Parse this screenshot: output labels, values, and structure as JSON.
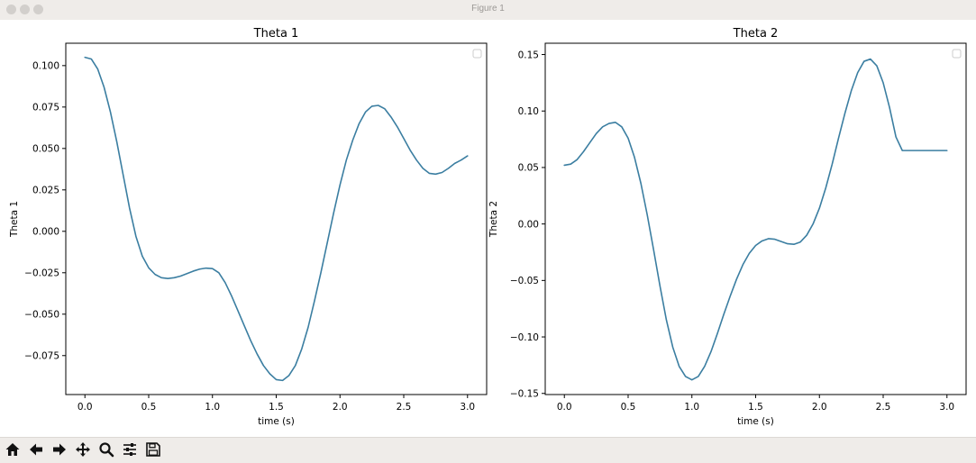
{
  "window": {
    "title": "Figure 1"
  },
  "toolbar": {
    "tools": [
      {
        "name": "home-icon"
      },
      {
        "name": "back-arrow-icon"
      },
      {
        "name": "forward-arrow-icon"
      },
      {
        "name": "pan-move-icon"
      },
      {
        "name": "zoom-magnifier-icon"
      },
      {
        "name": "configure-subplots-icon"
      },
      {
        "name": "save-floppy-icon"
      }
    ]
  },
  "colors": {
    "line": "#3b7ea1",
    "frame": "#000000"
  },
  "chart_data": [
    {
      "type": "line",
      "title": "Theta 1",
      "xlabel": "time (s)",
      "ylabel": "Theta 1",
      "xlim": [
        -0.15,
        3.15
      ],
      "ylim": [
        -0.0985,
        0.1135
      ],
      "xticks": [
        0.0,
        0.5,
        1.0,
        1.5,
        2.0,
        2.5,
        3.0
      ],
      "xtick_labels": [
        "0.0",
        "0.5",
        "1.0",
        "1.5",
        "2.0",
        "2.5",
        "3.0"
      ],
      "yticks": [
        -0.075,
        -0.05,
        -0.025,
        0.0,
        0.025,
        0.05,
        0.075,
        0.1
      ],
      "ytick_labels": [
        "−0.075",
        "−0.050",
        "−0.025",
        "0.000",
        "0.025",
        "0.050",
        "0.075",
        "0.100"
      ],
      "legend": "upper right (empty)",
      "grid": false,
      "series": [
        {
          "x": [
            0.0,
            0.05,
            0.1,
            0.15,
            0.2,
            0.25,
            0.3,
            0.35,
            0.4,
            0.45,
            0.5,
            0.55,
            0.6,
            0.65,
            0.7,
            0.75,
            0.8,
            0.85,
            0.9,
            0.95,
            1.0,
            1.05,
            1.1,
            1.15,
            1.2,
            1.25,
            1.3,
            1.35,
            1.4,
            1.45,
            1.5,
            1.55,
            1.6,
            1.65,
            1.7,
            1.75,
            1.8,
            1.85,
            1.9,
            1.95,
            2.0,
            2.05,
            2.1,
            2.15,
            2.2,
            2.25,
            2.3,
            2.35,
            2.4,
            2.45,
            2.5,
            2.55,
            2.6,
            2.65,
            2.7,
            2.75,
            2.8,
            2.85,
            2.9,
            2.95,
            3.0
          ],
          "values": [
            0.105,
            0.104,
            0.098,
            0.087,
            0.072,
            0.054,
            0.034,
            0.014,
            -0.003,
            -0.015,
            -0.022,
            -0.026,
            -0.028,
            -0.0285,
            -0.028,
            -0.027,
            -0.0255,
            -0.024,
            -0.0228,
            -0.0222,
            -0.0225,
            -0.025,
            -0.031,
            -0.039,
            -0.048,
            -0.057,
            -0.066,
            -0.074,
            -0.081,
            -0.086,
            -0.0895,
            -0.09,
            -0.087,
            -0.081,
            -0.071,
            -0.058,
            -0.042,
            -0.025,
            -0.007,
            0.011,
            0.028,
            0.043,
            0.055,
            0.065,
            0.072,
            0.0755,
            0.076,
            0.074,
            0.069,
            0.063,
            0.056,
            0.049,
            0.043,
            0.038,
            0.035,
            0.0345,
            0.0355,
            0.038,
            0.041,
            0.043,
            0.0455
          ]
        }
      ]
    },
    {
      "type": "line",
      "title": "Theta 2",
      "xlabel": "time (s)",
      "ylabel": "Theta 2",
      "xlim": [
        -0.15,
        3.15
      ],
      "ylim": [
        -0.151,
        0.16
      ],
      "xticks": [
        0.0,
        0.5,
        1.0,
        1.5,
        2.0,
        2.5,
        3.0
      ],
      "xtick_labels": [
        "0.0",
        "0.5",
        "1.0",
        "1.5",
        "2.0",
        "2.5",
        "3.0"
      ],
      "yticks": [
        -0.15,
        -0.1,
        -0.05,
        0.0,
        0.05,
        0.1,
        0.15
      ],
      "ytick_labels": [
        "−0.15",
        "−0.10",
        "−0.05",
        "0.00",
        "0.05",
        "0.10",
        "0.15"
      ],
      "legend": "upper right (empty)",
      "grid": false,
      "series": [
        {
          "x": [
            0.0,
            0.05,
            0.1,
            0.15,
            0.2,
            0.25,
            0.3,
            0.35,
            0.4,
            0.45,
            0.5,
            0.55,
            0.6,
            0.65,
            0.7,
            0.75,
            0.8,
            0.85,
            0.9,
            0.95,
            1.0,
            1.05,
            1.1,
            1.15,
            1.2,
            1.25,
            1.3,
            1.35,
            1.4,
            1.45,
            1.5,
            1.55,
            1.6,
            1.65,
            1.7,
            1.75,
            1.8,
            1.85,
            1.9,
            1.95,
            2.0,
            2.05,
            2.1,
            2.15,
            2.2,
            2.25,
            2.3,
            2.35,
            2.4,
            2.45,
            2.5,
            2.55,
            2.6,
            2.65,
            2.7,
            2.75,
            2.8,
            2.85,
            2.9,
            2.95,
            3.0
          ],
          "values": [
            0.052,
            0.053,
            0.057,
            0.064,
            0.072,
            0.08,
            0.086,
            0.089,
            0.09,
            0.086,
            0.076,
            0.059,
            0.036,
            0.008,
            -0.023,
            -0.055,
            -0.085,
            -0.109,
            -0.126,
            -0.135,
            -0.138,
            -0.135,
            -0.126,
            -0.113,
            -0.097,
            -0.08,
            -0.064,
            -0.049,
            -0.036,
            -0.026,
            -0.019,
            -0.015,
            -0.013,
            -0.0135,
            -0.0155,
            -0.0175,
            -0.018,
            -0.016,
            -0.01,
            0.0,
            0.014,
            0.032,
            0.053,
            0.076,
            0.098,
            0.118,
            0.134,
            0.144,
            0.146,
            0.14,
            0.125,
            0.103,
            0.077,
            0.065,
            0.065,
            0.065,
            0.065,
            0.065,
            0.065,
            0.065,
            0.065
          ]
        }
      ]
    }
  ]
}
